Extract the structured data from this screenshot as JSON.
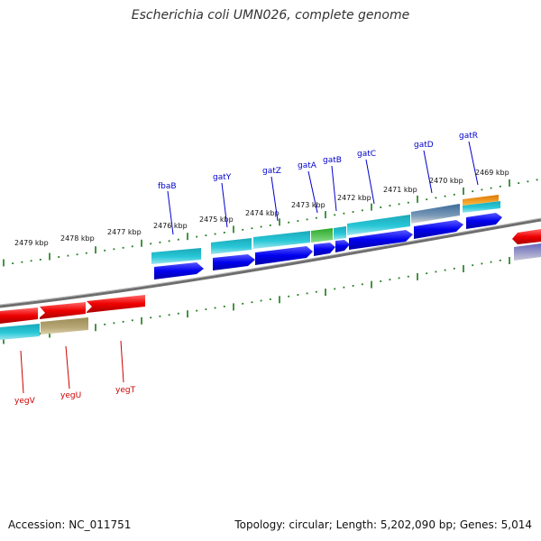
{
  "header": {
    "title": "Escherichia coli UMN026, complete genome"
  },
  "footer": {
    "accession": "Accession: NC_011751",
    "summary": "Topology: circular; Length: 5,202,090 bp; Genes: 5,014"
  },
  "colors": {
    "backbone": "#808080",
    "tick": "#1a7a1a",
    "forward_label": "#0000cc",
    "reverse_label": "#cc0000",
    "cds_forward": "#0000ee",
    "cds_reverse": "#ee0000",
    "feature_cyan": "#1fb8c8",
    "feature_tan": "#b0a070",
    "feature_green": "#33bb33",
    "feature_steel": "#4477aa",
    "feature_orange": "#ee8800",
    "feature_slate": "#6666bb"
  },
  "scale": {
    "ticks": [
      "2479 kbp",
      "2478 kbp",
      "2477 kbp",
      "2476 kbp",
      "2475 kbp",
      "2474 kbp",
      "2473 kbp",
      "2472 kbp",
      "2471 kbp",
      "2470 kbp",
      "2469 kbp"
    ]
  },
  "genes": {
    "forward": [
      "fbaB",
      "gatY",
      "gatZ",
      "gatA",
      "gatB",
      "gatC",
      "gatD",
      "gatR"
    ],
    "reverse": [
      "yegV",
      "yegU",
      "yegT"
    ]
  }
}
